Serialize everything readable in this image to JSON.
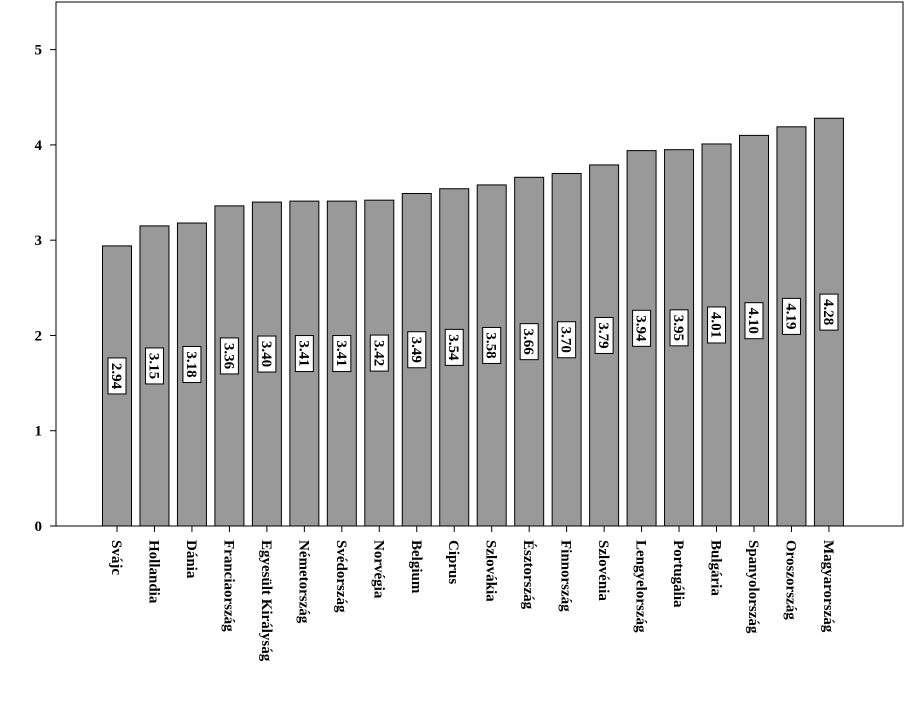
{
  "chart_data": {
    "type": "bar",
    "title": "",
    "xlabel": "",
    "ylabel": "",
    "ylim": [
      0,
      5.5
    ],
    "yticks": [
      0,
      1,
      2,
      3,
      4,
      5
    ],
    "grid": false,
    "legend": "none",
    "bar_color": "#999999",
    "categories": [
      "Svájc",
      "Hollandia",
      "Dánia",
      "Franciaország",
      "Egyesült Királyság",
      "Németország",
      "Svédország",
      "Norvégia",
      "Belgium",
      "Ciprus",
      "Szlovákia",
      "Észtország",
      "Finnország",
      "Szlovénia",
      "Lengyelország",
      "Portugália",
      "Bulgária",
      "Spanyolország",
      "Oroszország",
      "Magyarország"
    ],
    "values": [
      2.94,
      3.15,
      3.18,
      3.36,
      3.4,
      3.41,
      3.41,
      3.42,
      3.49,
      3.54,
      3.58,
      3.66,
      3.7,
      3.79,
      3.94,
      3.95,
      4.01,
      4.1,
      4.19,
      4.28
    ],
    "value_labels": [
      "2.94",
      "3.15",
      "3.18",
      "3.36",
      "3.40",
      "3.41",
      "3.41",
      "3.42",
      "3.49",
      "3.54",
      "3.58",
      "3.66",
      "3.70",
      "3.79",
      "3.94",
      "3.95",
      "4.01",
      "4.10",
      "4.19",
      "4.28"
    ]
  }
}
